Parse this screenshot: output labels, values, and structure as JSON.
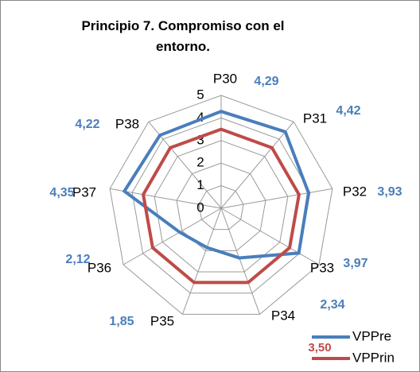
{
  "chart_data": {
    "type": "radar",
    "title": "Principio 7. Compromiso con el entorno.",
    "categories": [
      "P30",
      "P31",
      "P32",
      "P33",
      "P34",
      "P35",
      "P36",
      "P37",
      "P38"
    ],
    "series": [
      {
        "name": "VPPre",
        "color": "#4a7ebb",
        "values": [
          4.29,
          4.42,
          3.93,
          3.97,
          2.34,
          1.85,
          2.12,
          4.35,
          4.22
        ],
        "value_labels": [
          "4,29",
          "4,42",
          "3,93",
          "3,97",
          "2,34",
          "1,85",
          "2,12",
          "4,35",
          "4,22"
        ]
      },
      {
        "name": "VPPrin",
        "color": "#be4b48",
        "values": [
          3.5,
          3.5,
          3.5,
          3.5,
          3.5,
          3.5,
          3.5,
          3.5,
          3.5
        ],
        "label": "3,50"
      }
    ],
    "ylim": [
      0,
      5
    ],
    "yticks": [
      0,
      1,
      2,
      3,
      4,
      5
    ],
    "grid": true,
    "legend": "lower right"
  }
}
